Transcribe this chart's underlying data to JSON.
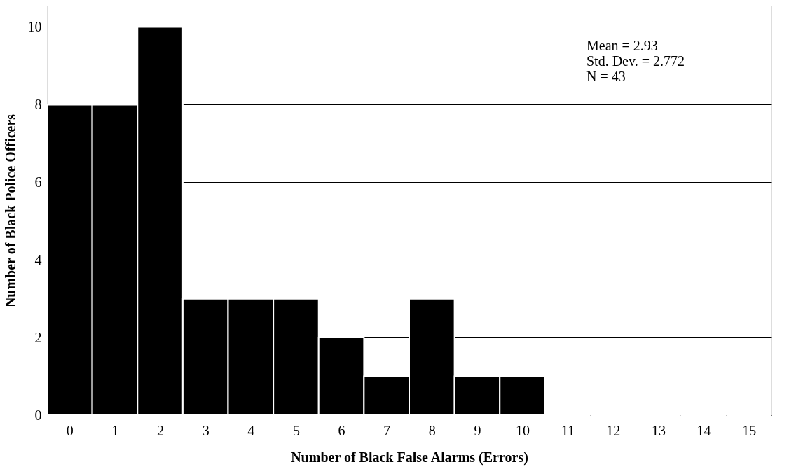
{
  "chart_data": {
    "type": "histogram",
    "xlabel": "Number of Black False Alarms (Errors)",
    "ylabel": "Number of Black Police Officers",
    "bins": [
      -0.5,
      0.5,
      1.5,
      2.5,
      3.5,
      4.5,
      5.5,
      6.5,
      7.5,
      8.5,
      9.5,
      10.5,
      11.5,
      12.5,
      13.5,
      14.5,
      15.5
    ],
    "values": [
      8,
      8,
      10,
      3,
      3,
      3,
      2,
      1,
      3,
      1,
      1,
      0,
      0,
      0,
      0,
      0
    ],
    "color": "#000000",
    "xlim": [
      -0.5,
      15.5
    ],
    "xticks": [
      0,
      1,
      2,
      3,
      4,
      5,
      6,
      7,
      8,
      9,
      10,
      11,
      12,
      13,
      14,
      15
    ],
    "ylim": [
      0,
      10.55
    ],
    "yticks": [
      0,
      2,
      4,
      6,
      8,
      10
    ],
    "grid": "y",
    "annotations": [
      "Mean = 2.93",
      "Std. Dev. = 2.772",
      "N = 43"
    ]
  }
}
